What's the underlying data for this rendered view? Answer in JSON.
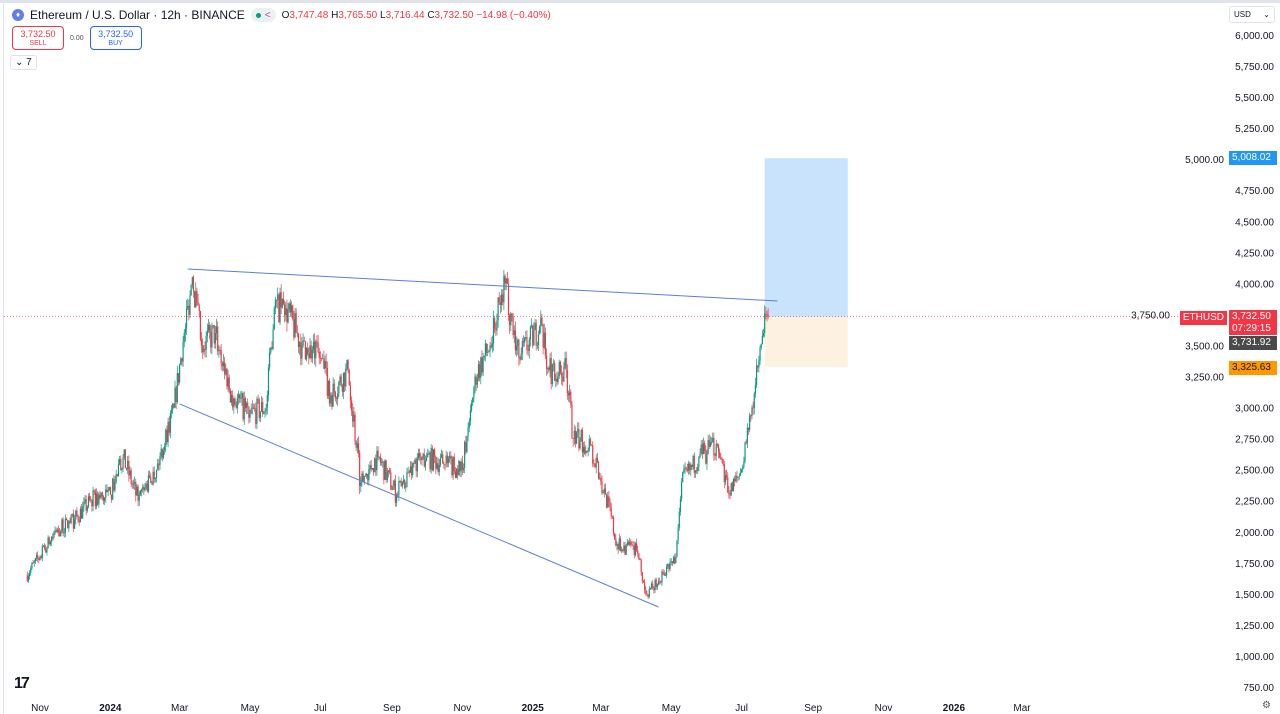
{
  "header": {
    "title": "Ethereum / U.S. Dollar · 12h · BINANCE",
    "open_label": "O",
    "open": "3,747.48",
    "high_label": "H",
    "high": "3,765.50",
    "low_label": "L",
    "low": "3,716.44",
    "close_label": "C",
    "close": "3,732.50",
    "change": "−14.98 (−0.40%)"
  },
  "trade": {
    "sell_price": "3,732.50",
    "sell_label": "SELL",
    "spread": "0.00",
    "buy_price": "3,732.50",
    "buy_label": "BUY"
  },
  "indicators_toggle": "7",
  "currency": "USD",
  "price_labels": {
    "symbol": "ETHUSD",
    "last": "3,732.50",
    "countdown": "07:29:15",
    "crosshair": "3,731.92",
    "target": "5,008.02",
    "stop": "3,325.63"
  },
  "colors": {
    "up": "#089981",
    "down": "#f23645",
    "trendline": "#5b7fd6",
    "target_zone": "#c8e3fb",
    "stop_zone": "#fdf1e2",
    "target_label": "#2196f3",
    "stop_label": "#ff9800"
  },
  "chart_data": {
    "type": "candlestick",
    "yticks": [
      "6,000.00",
      "5,750.00",
      "5,500.00",
      "5,250.00",
      "5,000.00",
      "4,750.00",
      "4,500.00",
      "4,250.00",
      "4,000.00",
      "3,750.00",
      "3,500.00",
      "3,250.00",
      "3,000.00",
      "2,750.00",
      "2,500.00",
      "2,250.00",
      "2,000.00",
      "1,750.00",
      "1,500.00",
      "1,250.00",
      "1,000.00",
      "750.00"
    ],
    "xticks": [
      {
        "label": "Nov",
        "date": "2023-11-01"
      },
      {
        "label": "2024",
        "date": "2024-01-01"
      },
      {
        "label": "Mar",
        "date": "2024-03-01"
      },
      {
        "label": "May",
        "date": "2024-05-01"
      },
      {
        "label": "Jul",
        "date": "2024-07-01"
      },
      {
        "label": "Sep",
        "date": "2024-09-01"
      },
      {
        "label": "Nov",
        "date": "2024-11-01"
      },
      {
        "label": "2025",
        "date": "2025-01-01"
      },
      {
        "label": "Mar",
        "date": "2025-03-01"
      },
      {
        "label": "May",
        "date": "2025-05-01"
      },
      {
        "label": "Jul",
        "date": "2025-07-01"
      },
      {
        "label": "Sep",
        "date": "2025-09-01"
      },
      {
        "label": "Nov",
        "date": "2025-11-01"
      },
      {
        "label": "2026",
        "date": "2026-01-01"
      },
      {
        "label": "Mar",
        "date": "2026-03-01"
      }
    ],
    "ylim": [
      750,
      6000
    ],
    "closes": [
      [
        "2023-10-20",
        1650
      ],
      [
        "2023-11-01",
        1800
      ],
      [
        "2023-11-15",
        2000
      ],
      [
        "2023-12-01",
        2100
      ],
      [
        "2023-12-15",
        2250
      ],
      [
        "2024-01-01",
        2300
      ],
      [
        "2024-01-12",
        2600
      ],
      [
        "2024-01-25",
        2250
      ],
      [
        "2024-02-10",
        2500
      ],
      [
        "2024-02-25",
        3000
      ],
      [
        "2024-03-05",
        3600
      ],
      [
        "2024-03-12",
        4050
      ],
      [
        "2024-03-20",
        3500
      ],
      [
        "2024-04-01",
        3600
      ],
      [
        "2024-04-15",
        3100
      ],
      [
        "2024-05-01",
        2950
      ],
      [
        "2024-05-15",
        3000
      ],
      [
        "2024-05-22",
        3800
      ],
      [
        "2024-06-01",
        3800
      ],
      [
        "2024-06-15",
        3500
      ],
      [
        "2024-07-01",
        3400
      ],
      [
        "2024-07-10",
        3100
      ],
      [
        "2024-07-25",
        3300
      ],
      [
        "2024-08-05",
        2400
      ],
      [
        "2024-08-20",
        2600
      ],
      [
        "2024-09-05",
        2300
      ],
      [
        "2024-09-20",
        2550
      ],
      [
        "2024-10-01",
        2600
      ],
      [
        "2024-10-15",
        2550
      ],
      [
        "2024-11-01",
        2500
      ],
      [
        "2024-11-12",
        3250
      ],
      [
        "2024-11-25",
        3500
      ],
      [
        "2024-12-08",
        4000
      ],
      [
        "2024-12-20",
        3400
      ],
      [
        "2025-01-07",
        3650
      ],
      [
        "2025-01-15",
        3300
      ],
      [
        "2025-01-30",
        3300
      ],
      [
        "2025-02-05",
        2750
      ],
      [
        "2025-02-20",
        2700
      ],
      [
        "2025-03-05",
        2300
      ],
      [
        "2025-03-15",
        1900
      ],
      [
        "2025-04-01",
        1850
      ],
      [
        "2025-04-09",
        1500
      ],
      [
        "2025-04-20",
        1600
      ],
      [
        "2025-05-05",
        1800
      ],
      [
        "2025-05-10",
        2400
      ],
      [
        "2025-05-25",
        2600
      ],
      [
        "2025-06-10",
        2700
      ],
      [
        "2025-06-20",
        2300
      ],
      [
        "2025-07-01",
        2500
      ],
      [
        "2025-07-10",
        3000
      ],
      [
        "2025-07-20",
        3600
      ],
      [
        "2025-07-24",
        3732.5
      ]
    ],
    "trendlines": [
      {
        "from": [
          "2024-03-08",
          4116
        ],
        "to": [
          "2025-08-01",
          3858
        ]
      },
      {
        "from": [
          "2024-03-01",
          3029
        ],
        "to": [
          "2025-04-20",
          1394
        ]
      }
    ],
    "position": {
      "start": "2025-07-21",
      "end": "2025-10-01",
      "entry": 3732.5,
      "target": 5008.02,
      "stop": 3325.63
    },
    "last_price": 3732.5
  }
}
